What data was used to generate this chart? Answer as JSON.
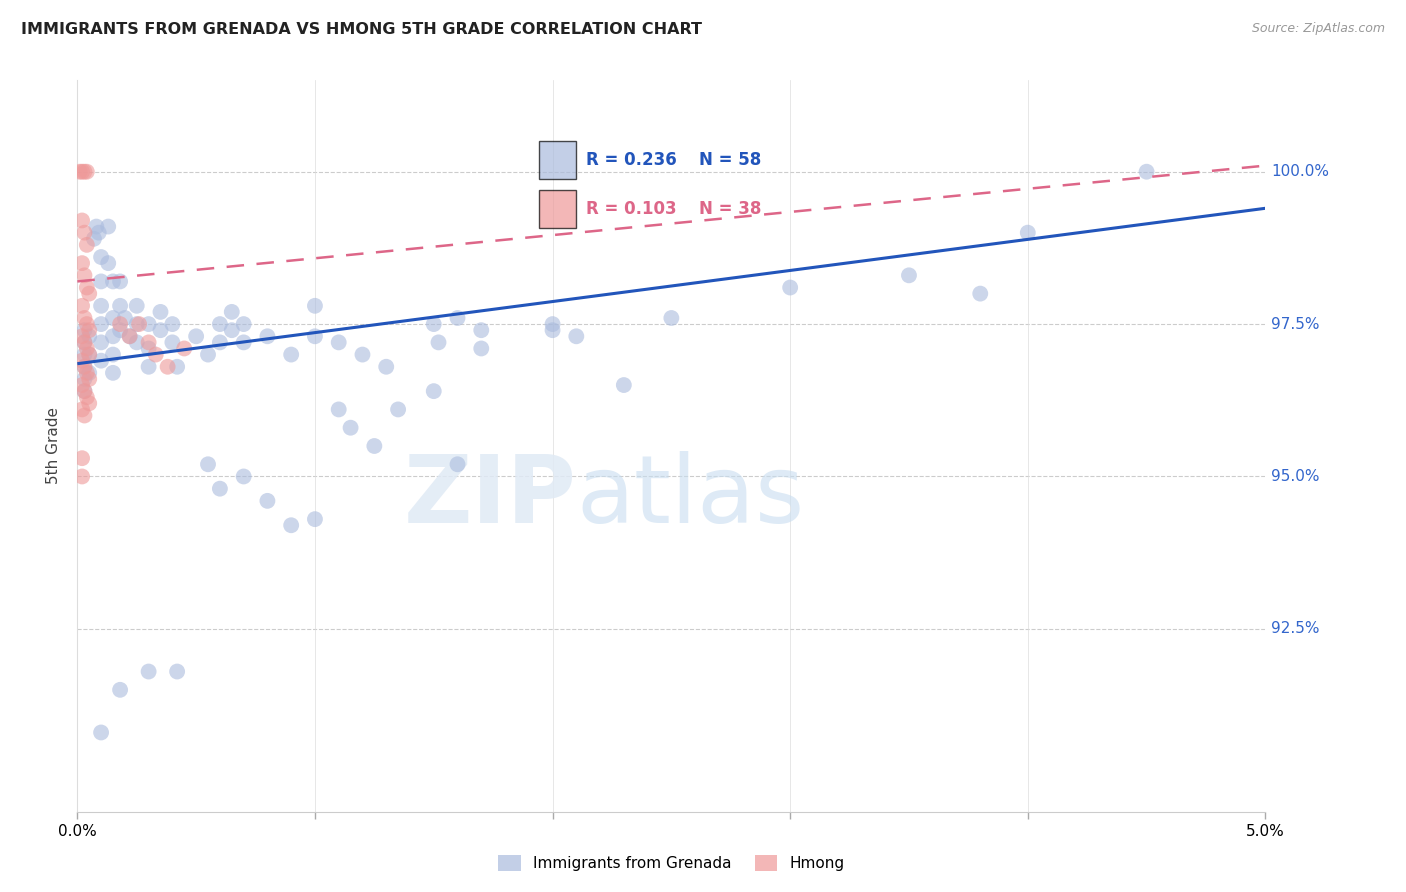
{
  "title": "IMMIGRANTS FROM GRENADA VS HMONG 5TH GRADE CORRELATION CHART",
  "source": "Source: ZipAtlas.com",
  "ylabel": "5th Grade",
  "xlim": [
    0.0,
    5.0
  ],
  "ylim": [
    89.5,
    101.5
  ],
  "yticks": [
    92.5,
    95.0,
    97.5,
    100.0
  ],
  "ytick_labels": [
    "92.5%",
    "95.0%",
    "97.5%",
    "100.0%"
  ],
  "watermark_zip": "ZIP",
  "watermark_atlas": "atlas",
  "blue_color": "#aabbdd",
  "pink_color": "#ee9999",
  "blue_line_color": "#2255bb",
  "pink_line_color": "#dd6688",
  "blue_scatter": [
    [
      0.03,
      97.4
    ],
    [
      0.03,
      97.2
    ],
    [
      0.03,
      97.0
    ],
    [
      0.03,
      96.8
    ],
    [
      0.03,
      96.6
    ],
    [
      0.03,
      96.4
    ],
    [
      0.05,
      97.3
    ],
    [
      0.05,
      97.0
    ],
    [
      0.05,
      96.7
    ],
    [
      0.07,
      98.9
    ],
    [
      0.08,
      99.1
    ],
    [
      0.09,
      99.0
    ],
    [
      0.1,
      98.6
    ],
    [
      0.1,
      98.2
    ],
    [
      0.1,
      97.8
    ],
    [
      0.1,
      97.5
    ],
    [
      0.1,
      97.2
    ],
    [
      0.1,
      96.9
    ],
    [
      0.13,
      99.1
    ],
    [
      0.13,
      98.5
    ],
    [
      0.15,
      98.2
    ],
    [
      0.15,
      97.6
    ],
    [
      0.15,
      97.3
    ],
    [
      0.15,
      97.0
    ],
    [
      0.15,
      96.7
    ],
    [
      0.18,
      98.2
    ],
    [
      0.18,
      97.8
    ],
    [
      0.18,
      97.4
    ],
    [
      0.2,
      97.6
    ],
    [
      0.22,
      97.3
    ],
    [
      0.25,
      97.8
    ],
    [
      0.25,
      97.5
    ],
    [
      0.25,
      97.2
    ],
    [
      0.3,
      97.5
    ],
    [
      0.3,
      97.1
    ],
    [
      0.3,
      96.8
    ],
    [
      0.35,
      97.7
    ],
    [
      0.35,
      97.4
    ],
    [
      0.4,
      97.5
    ],
    [
      0.4,
      97.2
    ],
    [
      0.42,
      96.8
    ],
    [
      0.5,
      97.3
    ],
    [
      0.55,
      97.0
    ],
    [
      0.6,
      97.5
    ],
    [
      0.6,
      97.2
    ],
    [
      0.65,
      97.7
    ],
    [
      0.65,
      97.4
    ],
    [
      0.7,
      97.5
    ],
    [
      0.7,
      97.2
    ],
    [
      0.8,
      97.3
    ],
    [
      0.9,
      97.0
    ],
    [
      1.0,
      97.8
    ],
    [
      1.0,
      97.3
    ],
    [
      1.1,
      97.2
    ],
    [
      1.2,
      97.0
    ],
    [
      1.3,
      96.8
    ],
    [
      1.5,
      97.5
    ],
    [
      1.52,
      97.2
    ],
    [
      1.6,
      97.6
    ],
    [
      1.7,
      97.4
    ],
    [
      2.0,
      97.5
    ],
    [
      2.1,
      97.3
    ],
    [
      2.3,
      96.5
    ],
    [
      3.5,
      98.3
    ],
    [
      4.0,
      99.0
    ],
    [
      4.5,
      100.0
    ],
    [
      0.1,
      90.8
    ],
    [
      0.18,
      91.5
    ],
    [
      0.3,
      91.8
    ],
    [
      0.55,
      95.2
    ],
    [
      0.6,
      94.8
    ],
    [
      0.7,
      95.0
    ],
    [
      0.8,
      94.6
    ],
    [
      0.9,
      94.2
    ],
    [
      1.0,
      94.3
    ],
    [
      1.1,
      96.1
    ],
    [
      1.15,
      95.8
    ],
    [
      1.25,
      95.5
    ],
    [
      1.35,
      96.1
    ],
    [
      1.5,
      96.4
    ],
    [
      1.6,
      95.2
    ],
    [
      1.7,
      97.1
    ],
    [
      2.0,
      97.4
    ],
    [
      2.5,
      97.6
    ],
    [
      3.0,
      98.1
    ],
    [
      3.8,
      98.0
    ],
    [
      0.42,
      91.8
    ]
  ],
  "pink_scatter": [
    [
      0.01,
      100.0
    ],
    [
      0.02,
      100.0
    ],
    [
      0.03,
      100.0
    ],
    [
      0.04,
      100.0
    ],
    [
      0.02,
      99.2
    ],
    [
      0.03,
      99.0
    ],
    [
      0.04,
      98.8
    ],
    [
      0.02,
      98.5
    ],
    [
      0.03,
      98.3
    ],
    [
      0.04,
      98.1
    ],
    [
      0.05,
      98.0
    ],
    [
      0.02,
      97.8
    ],
    [
      0.03,
      97.6
    ],
    [
      0.04,
      97.5
    ],
    [
      0.05,
      97.4
    ],
    [
      0.02,
      97.3
    ],
    [
      0.03,
      97.2
    ],
    [
      0.04,
      97.1
    ],
    [
      0.05,
      97.0
    ],
    [
      0.02,
      96.9
    ],
    [
      0.03,
      96.8
    ],
    [
      0.04,
      96.7
    ],
    [
      0.05,
      96.6
    ],
    [
      0.02,
      96.5
    ],
    [
      0.03,
      96.4
    ],
    [
      0.04,
      96.3
    ],
    [
      0.05,
      96.2
    ],
    [
      0.02,
      96.1
    ],
    [
      0.03,
      96.0
    ],
    [
      0.02,
      95.0
    ],
    [
      0.02,
      95.3
    ],
    [
      0.18,
      97.5
    ],
    [
      0.22,
      97.3
    ],
    [
      0.26,
      97.5
    ],
    [
      0.3,
      97.2
    ],
    [
      0.33,
      97.0
    ],
    [
      0.38,
      96.8
    ],
    [
      0.45,
      97.1
    ]
  ],
  "blue_trend_x": [
    0.0,
    5.0
  ],
  "blue_trend_y": [
    96.85,
    99.4
  ],
  "pink_trend_x": [
    0.0,
    5.0
  ],
  "pink_trend_y": [
    98.2,
    100.1
  ]
}
